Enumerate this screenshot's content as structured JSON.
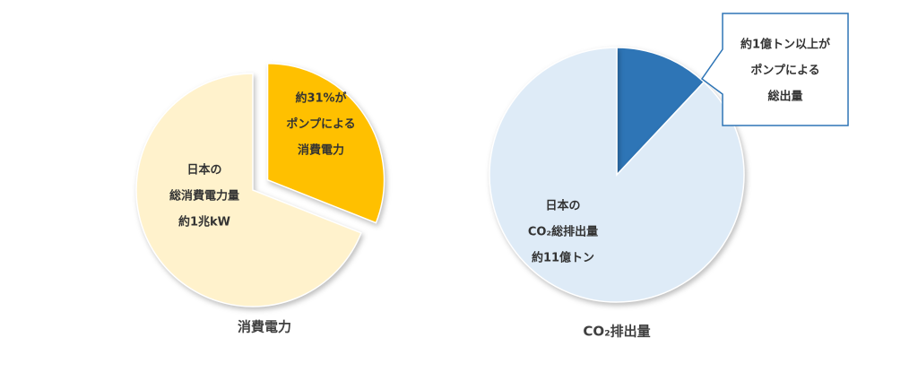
{
  "chart_data": [
    {
      "type": "pie",
      "title": "消費電力",
      "values": [
        31,
        69
      ],
      "colors": [
        "#ffc000",
        "#fff2cc"
      ],
      "explode": [
        true,
        false
      ],
      "labels": [
        [
          "約31%が",
          "ポンプによる",
          "消費電力"
        ],
        [
          "日本の",
          "総消費電力量",
          "約1兆kW"
        ]
      ]
    },
    {
      "type": "pie",
      "title": "CO₂排出量",
      "values": [
        12,
        88
      ],
      "colors": [
        "#2e75b6",
        "#deebf7"
      ],
      "callout": [
        true,
        false
      ],
      "labels": [
        [
          "約1億トン以上が",
          "ポンプによる",
          "総出量"
        ],
        [
          "日本の",
          "CO₂総排出量",
          "約11億トン"
        ]
      ]
    }
  ]
}
